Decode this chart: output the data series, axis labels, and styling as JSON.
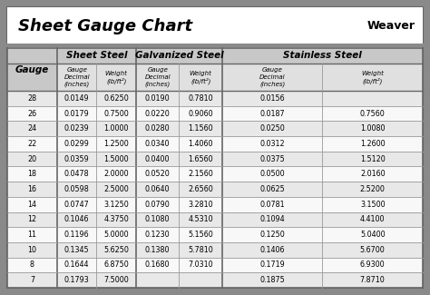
{
  "title": "Sheet Gauge Chart",
  "bg_outer": "#8a8a8a",
  "bg_inner": "#f2f2f2",
  "bg_title": "#ffffff",
  "bg_header": "#c8c8c8",
  "bg_subheader": "#e0e0e0",
  "row_even": "#e8e8e8",
  "row_odd": "#f8f8f8",
  "border_color": "#666666",
  "inner_border": "#999999",
  "gauges": [
    28,
    26,
    24,
    22,
    20,
    18,
    16,
    14,
    12,
    11,
    10,
    8,
    7
  ],
  "sheet_steel": [
    [
      "0.0149",
      "0.6250"
    ],
    [
      "0.0179",
      "0.7500"
    ],
    [
      "0.0239",
      "1.0000"
    ],
    [
      "0.0299",
      "1.2500"
    ],
    [
      "0.0359",
      "1.5000"
    ],
    [
      "0.0478",
      "2.0000"
    ],
    [
      "0.0598",
      "2.5000"
    ],
    [
      "0.0747",
      "3.1250"
    ],
    [
      "0.1046",
      "4.3750"
    ],
    [
      "0.1196",
      "5.0000"
    ],
    [
      "0.1345",
      "5.6250"
    ],
    [
      "0.1644",
      "6.8750"
    ],
    [
      "0.1793",
      "7.5000"
    ]
  ],
  "galvanized_steel": [
    [
      "0.0190",
      "0.7810"
    ],
    [
      "0.0220",
      "0.9060"
    ],
    [
      "0.0280",
      "1.1560"
    ],
    [
      "0.0340",
      "1.4060"
    ],
    [
      "0.0400",
      "1.6560"
    ],
    [
      "0.0520",
      "2.1560"
    ],
    [
      "0.0640",
      "2.6560"
    ],
    [
      "0.0790",
      "3.2810"
    ],
    [
      "0.1080",
      "4.5310"
    ],
    [
      "0.1230",
      "5.1560"
    ],
    [
      "0.1380",
      "5.7810"
    ],
    [
      "0.1680",
      "7.0310"
    ],
    [
      "",
      ""
    ]
  ],
  "stainless_steel": [
    [
      "0.0156",
      ""
    ],
    [
      "0.0187",
      "0.7560"
    ],
    [
      "0.0250",
      "1.0080"
    ],
    [
      "0.0312",
      "1.2600"
    ],
    [
      "0.0375",
      "1.5120"
    ],
    [
      "0.0500",
      "2.0160"
    ],
    [
      "0.0625",
      "2.5200"
    ],
    [
      "0.0781",
      "3.1500"
    ],
    [
      "0.1094",
      "4.4100"
    ],
    [
      "0.1250",
      "5.0400"
    ],
    [
      "0.1406",
      "5.6700"
    ],
    [
      "0.1719",
      "6.9300"
    ],
    [
      "0.1875",
      "7.8710"
    ]
  ]
}
